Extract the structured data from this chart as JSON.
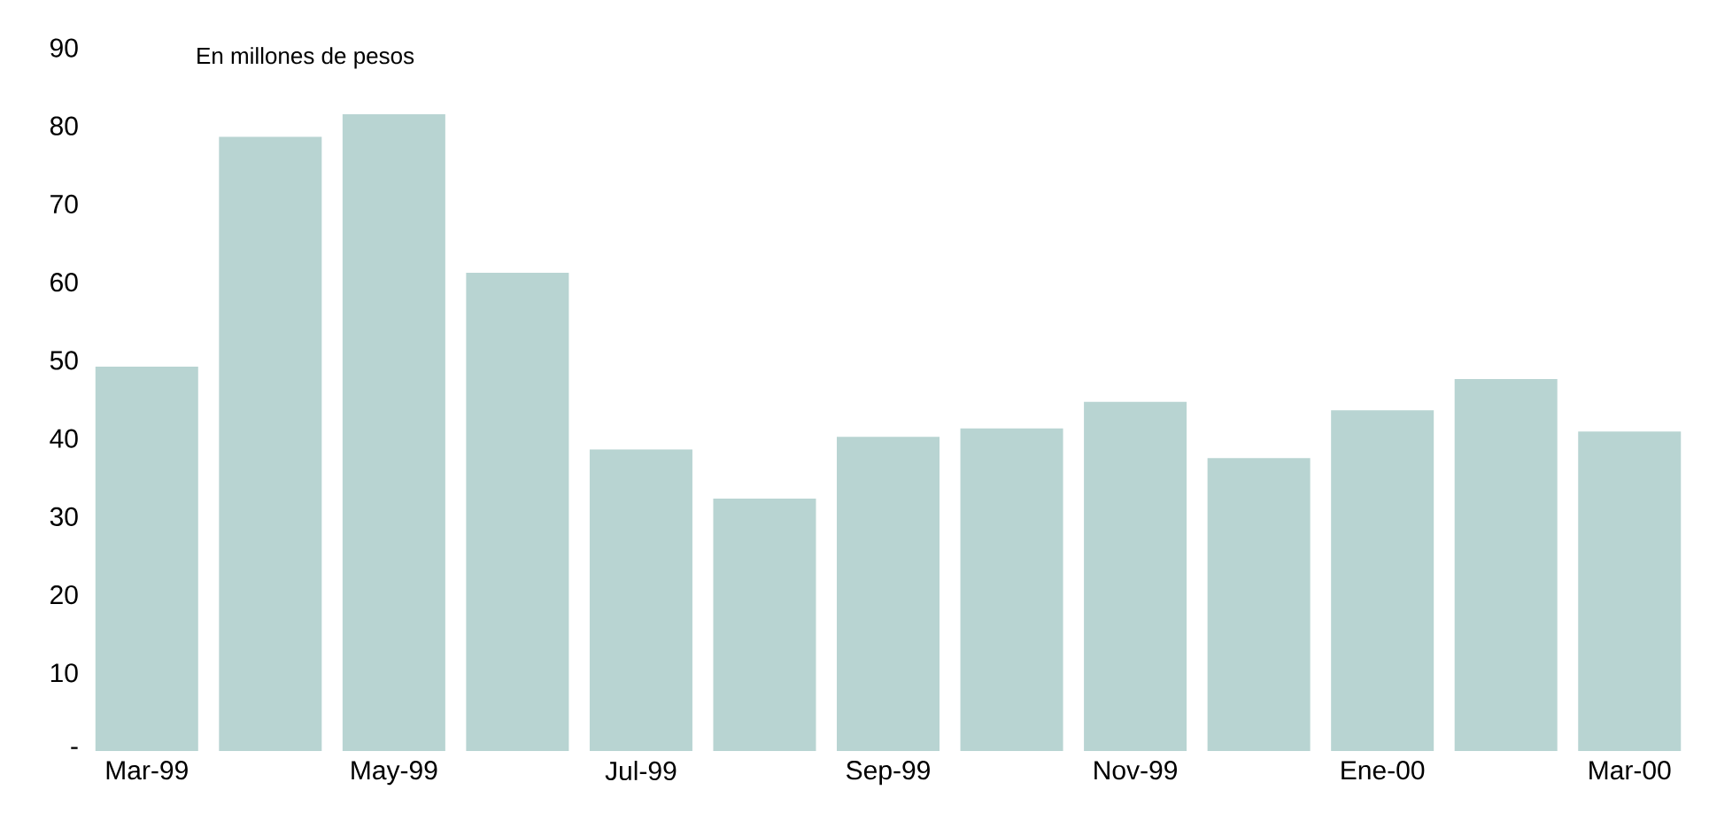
{
  "chart_data": {
    "type": "bar",
    "annotations": [
      "En millones de pesos"
    ],
    "categories": [
      "Mar-99",
      null,
      "May-99",
      null,
      "Jul-99",
      null,
      "Sep-99",
      null,
      "Nov-99",
      null,
      "Ene-00",
      null,
      "Mar-00"
    ],
    "values": [
      49.2,
      78.6,
      81.5,
      61.2,
      38.6,
      32.3,
      40.2,
      41.3,
      44.7,
      37.5,
      43.6,
      47.6,
      40.9
    ],
    "color": "#b8d4d2",
    "ylim": [
      0,
      90
    ],
    "yticks": [
      {
        "value": 0,
        "label": "-"
      },
      10,
      20,
      30,
      40,
      50,
      60,
      70,
      80,
      90
    ],
    "grid": false
  }
}
